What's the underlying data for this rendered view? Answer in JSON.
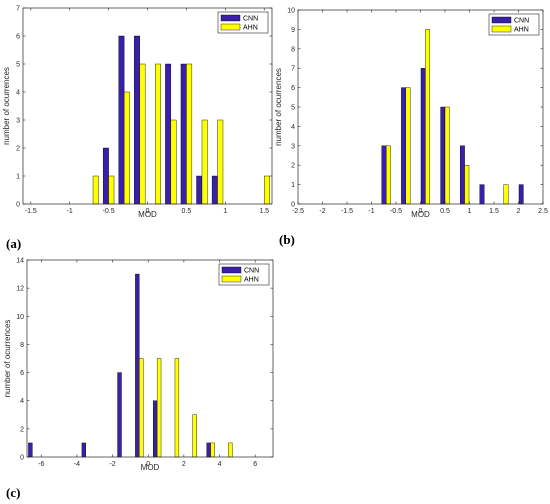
{
  "colors": {
    "cnn": "#3a1fa8",
    "ahn": "#ffff00"
  },
  "chart_data": [
    {
      "panel_label": "(a)",
      "type": "bar",
      "xlabel": "MOD",
      "ylabel": "number of ocurrences",
      "xlim": [
        -1.6,
        1.6
      ],
      "ylim": [
        0,
        7
      ],
      "xticks": [
        "-1.5",
        "-1",
        "-0.5",
        "0",
        "0.5",
        "1",
        "1.5"
      ],
      "xtick_values": [
        -1.5,
        -1,
        -0.5,
        0,
        0.5,
        1,
        1.5
      ],
      "yticks": [
        "0",
        "1",
        "2",
        "3",
        "4",
        "5",
        "6",
        "7"
      ],
      "ytick_values": [
        0,
        1,
        2,
        3,
        4,
        5,
        6,
        7
      ],
      "legend_position": "top-right",
      "bar_width": 0.07,
      "x": [
        -1.5,
        -1.3,
        -1.1,
        -0.9,
        -0.7,
        -0.5,
        -0.3,
        -0.1,
        0.1,
        0.3,
        0.5,
        0.7,
        0.9,
        1.1,
        1.3,
        1.5
      ],
      "series": [
        {
          "name": "CNN",
          "color_key": "cnn",
          "values": [
            0,
            0,
            0,
            0,
            0,
            2,
            6,
            6,
            0,
            5,
            5,
            1,
            1,
            0,
            0,
            0
          ]
        },
        {
          "name": "AHN",
          "color_key": "ahn",
          "values": [
            0,
            0,
            0,
            0,
            1,
            1,
            4,
            5,
            5,
            3,
            5,
            3,
            3,
            0,
            0,
            1
          ]
        }
      ]
    },
    {
      "panel_label": "(b)",
      "type": "bar",
      "xlabel": "MOD",
      "ylabel": "number of ocurrences",
      "xlim": [
        -2.5,
        2.5
      ],
      "ylim": [
        0,
        10
      ],
      "xticks": [
        "-2.5",
        "-2",
        "-1.5",
        "-1",
        "-0.5",
        "0",
        "0.5",
        "1",
        "1.5",
        "2",
        "2.5"
      ],
      "xtick_values": [
        -2.5,
        -2,
        -1.5,
        -1,
        -0.5,
        0,
        0.5,
        1,
        1.5,
        2,
        2.5
      ],
      "yticks": [
        "0",
        "1",
        "2",
        "3",
        "4",
        "5",
        "6",
        "7",
        "8",
        "9",
        "10"
      ],
      "ytick_values": [
        0,
        1,
        2,
        3,
        4,
        5,
        6,
        7,
        8,
        9,
        10
      ],
      "legend_position": "top-right",
      "bar_width": 0.09,
      "x": [
        -2.3,
        -1.9,
        -1.5,
        -1.1,
        -0.7,
        -0.3,
        0.1,
        0.5,
        0.9,
        1.3,
        1.7,
        2.1
      ],
      "series": [
        {
          "name": "CNN",
          "color_key": "cnn",
          "values": [
            0,
            0,
            0,
            0,
            3,
            6,
            7,
            5,
            3,
            1,
            0,
            1
          ]
        },
        {
          "name": "AHN",
          "color_key": "ahn",
          "values": [
            0,
            0,
            0,
            0,
            3,
            6,
            9,
            5,
            2,
            0,
            1,
            0
          ]
        }
      ]
    },
    {
      "panel_label": "(c)",
      "type": "bar",
      "xlabel": "MOD",
      "ylabel": "number of ocurrences",
      "xlim": [
        -6.8,
        7.0
      ],
      "ylim": [
        0,
        14
      ],
      "xticks": [
        "-6",
        "-4",
        "-2",
        "0",
        "2",
        "4",
        "6"
      ],
      "xtick_values": [
        -6,
        -4,
        -2,
        0,
        2,
        4,
        6
      ],
      "yticks": [
        "0",
        "2",
        "4",
        "6",
        "8",
        "10",
        "12",
        "14"
      ],
      "ytick_values": [
        0,
        2,
        4,
        6,
        8,
        10,
        12,
        14
      ],
      "legend_position": "top-right",
      "bar_width": 0.22,
      "x": [
        -6.5,
        -5.5,
        -4.5,
        -3.5,
        -2.5,
        -1.5,
        -0.5,
        0.5,
        1.5,
        2.5,
        3.5,
        4.5,
        5.5
      ],
      "series": [
        {
          "name": "CNN",
          "color_key": "cnn",
          "values": [
            1,
            0,
            0,
            1,
            0,
            6,
            13,
            4,
            0,
            0,
            1,
            0,
            0
          ]
        },
        {
          "name": "AHN",
          "color_key": "ahn",
          "values": [
            0,
            0,
            0,
            0,
            0,
            0,
            7,
            7,
            7,
            3,
            1,
            1,
            0
          ]
        }
      ]
    }
  ]
}
